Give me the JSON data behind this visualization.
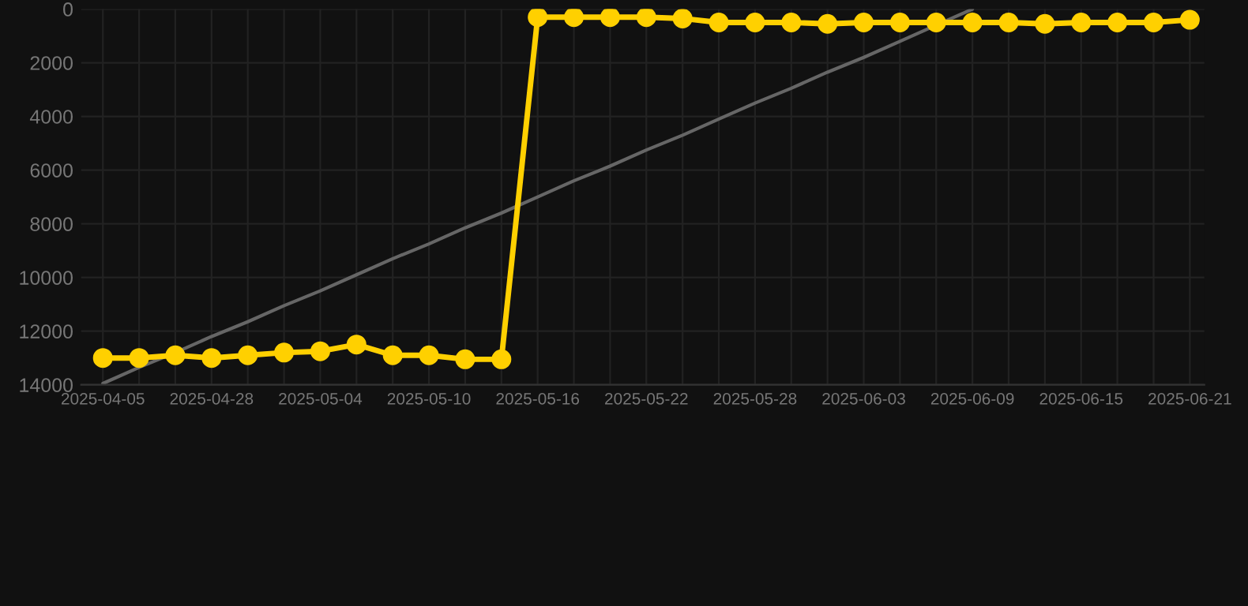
{
  "chart_data": {
    "type": "line",
    "categories": [
      "2025-04-05",
      null,
      null,
      "2025-04-28",
      null,
      null,
      "2025-05-04",
      null,
      null,
      "2025-05-10",
      null,
      null,
      "2025-05-16",
      null,
      null,
      "2025-05-22",
      null,
      null,
      "2025-05-28",
      null,
      null,
      "2025-06-03",
      null,
      null,
      "2025-06-09",
      null,
      null,
      "2025-06-15",
      null,
      null,
      "2025-06-21"
    ],
    "series": [
      {
        "color": "#ffd000",
        "marker": "circle",
        "values": [
          13000,
          13000,
          12900,
          13000,
          12900,
          12800,
          12750,
          12500,
          12900,
          12900,
          13050,
          13050,
          300,
          300,
          300,
          300,
          350,
          500,
          500,
          500,
          550,
          500,
          500,
          500,
          500,
          500,
          550,
          500,
          500,
          500,
          400
        ]
      },
      {
        "type": "line",
        "color": "#666666",
        "marker": "none",
        "values": [
          13950,
          13350,
          12800,
          12200,
          11650,
          11050,
          10500,
          9900,
          9300,
          8750,
          8150,
          7600,
          7000,
          6400,
          5850,
          5250,
          4700,
          4100,
          3500,
          2950,
          2350,
          1800,
          1200,
          600,
          0,
          null,
          null,
          null,
          null,
          null,
          null
        ]
      }
    ],
    "ylim": [
      14000,
      0
    ],
    "yticks": [
      0,
      2000,
      4000,
      6000,
      8000,
      10000,
      12000,
      14000
    ],
    "grid": true
  }
}
